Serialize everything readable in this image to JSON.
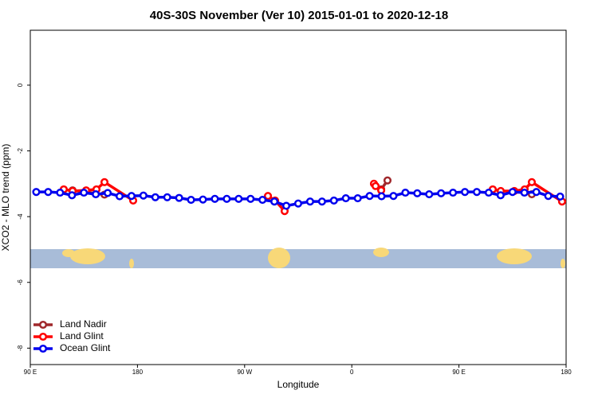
{
  "chart_data": {
    "type": "line",
    "title": "40S-30S November (Ver 10)   2015-01-01 to 2020-12-18",
    "x_label": "Longitude",
    "y_label": "XCO2 - MLO trend (ppm)",
    "xlim": [
      90,
      540
    ],
    "xticks": [
      {
        "value": 90,
        "label": "90 E"
      },
      {
        "value": 180,
        "label": "180"
      },
      {
        "value": 270,
        "label": "90 W"
      },
      {
        "value": 360,
        "label": "0"
      },
      {
        "value": 450,
        "label": "90 E"
      },
      {
        "value": 540,
        "label": "180"
      }
    ],
    "ylim": [
      -8.5,
      1.67
    ],
    "yticks": [
      0,
      -2,
      -4,
      -6,
      -8
    ],
    "legend": "bottom-left",
    "series": [
      {
        "name": "Land Nadir",
        "color": "#a0282c",
        "x": [
          125.5,
          152.3,
          null,
          384.7,
          390,
          null,
          511.2
        ],
        "values": [
          -3.2,
          -3.33,
          null,
          -3.17,
          -2.9,
          null,
          -3.32
        ]
      },
      {
        "name": "Land Glint",
        "color": "#ff0000",
        "x": [
          118.1,
          125.5,
          136.9,
          145.6,
          152.3,
          176.4,
          null,
          289.6,
          295.6,
          303.6,
          null,
          378.6,
          380,
          384.7,
          null,
          478.4,
          485.1,
          496.5,
          505.2,
          511.2,
          536.6
        ],
        "values": [
          -3.17,
          -3.22,
          -3.2,
          -3.17,
          -2.95,
          -3.51,
          null,
          -3.37,
          -3.51,
          -3.83,
          null,
          -3.0,
          -3.07,
          -3.2,
          null,
          -3.17,
          -3.22,
          -3.22,
          -3.17,
          -2.95,
          -3.54
        ]
      },
      {
        "name": "Ocean Glint",
        "color": "#0000ee",
        "x": [
          95,
          105,
          115,
          125,
          135,
          145,
          155,
          165,
          175,
          185,
          195,
          205,
          215,
          225,
          235,
          245,
          255,
          265,
          275,
          285,
          295,
          305,
          315,
          325,
          335,
          345,
          355,
          365,
          375,
          385,
          395,
          405,
          415,
          425,
          435,
          445,
          455,
          465,
          475,
          485,
          495,
          505,
          515,
          525,
          535
        ],
        "values": [
          -3.25,
          -3.25,
          -3.27,
          -3.35,
          -3.27,
          -3.32,
          -3.28,
          -3.38,
          -3.37,
          -3.36,
          -3.41,
          -3.41,
          -3.43,
          -3.49,
          -3.48,
          -3.46,
          -3.46,
          -3.46,
          -3.46,
          -3.49,
          -3.54,
          -3.67,
          -3.6,
          -3.54,
          -3.54,
          -3.51,
          -3.44,
          -3.44,
          -3.37,
          -3.38,
          -3.37,
          -3.27,
          -3.29,
          -3.32,
          -3.29,
          -3.27,
          -3.25,
          -3.25,
          -3.27,
          -3.35,
          -3.25,
          -3.27,
          -3.25,
          -3.37,
          -3.39
        ]
      }
    ]
  }
}
